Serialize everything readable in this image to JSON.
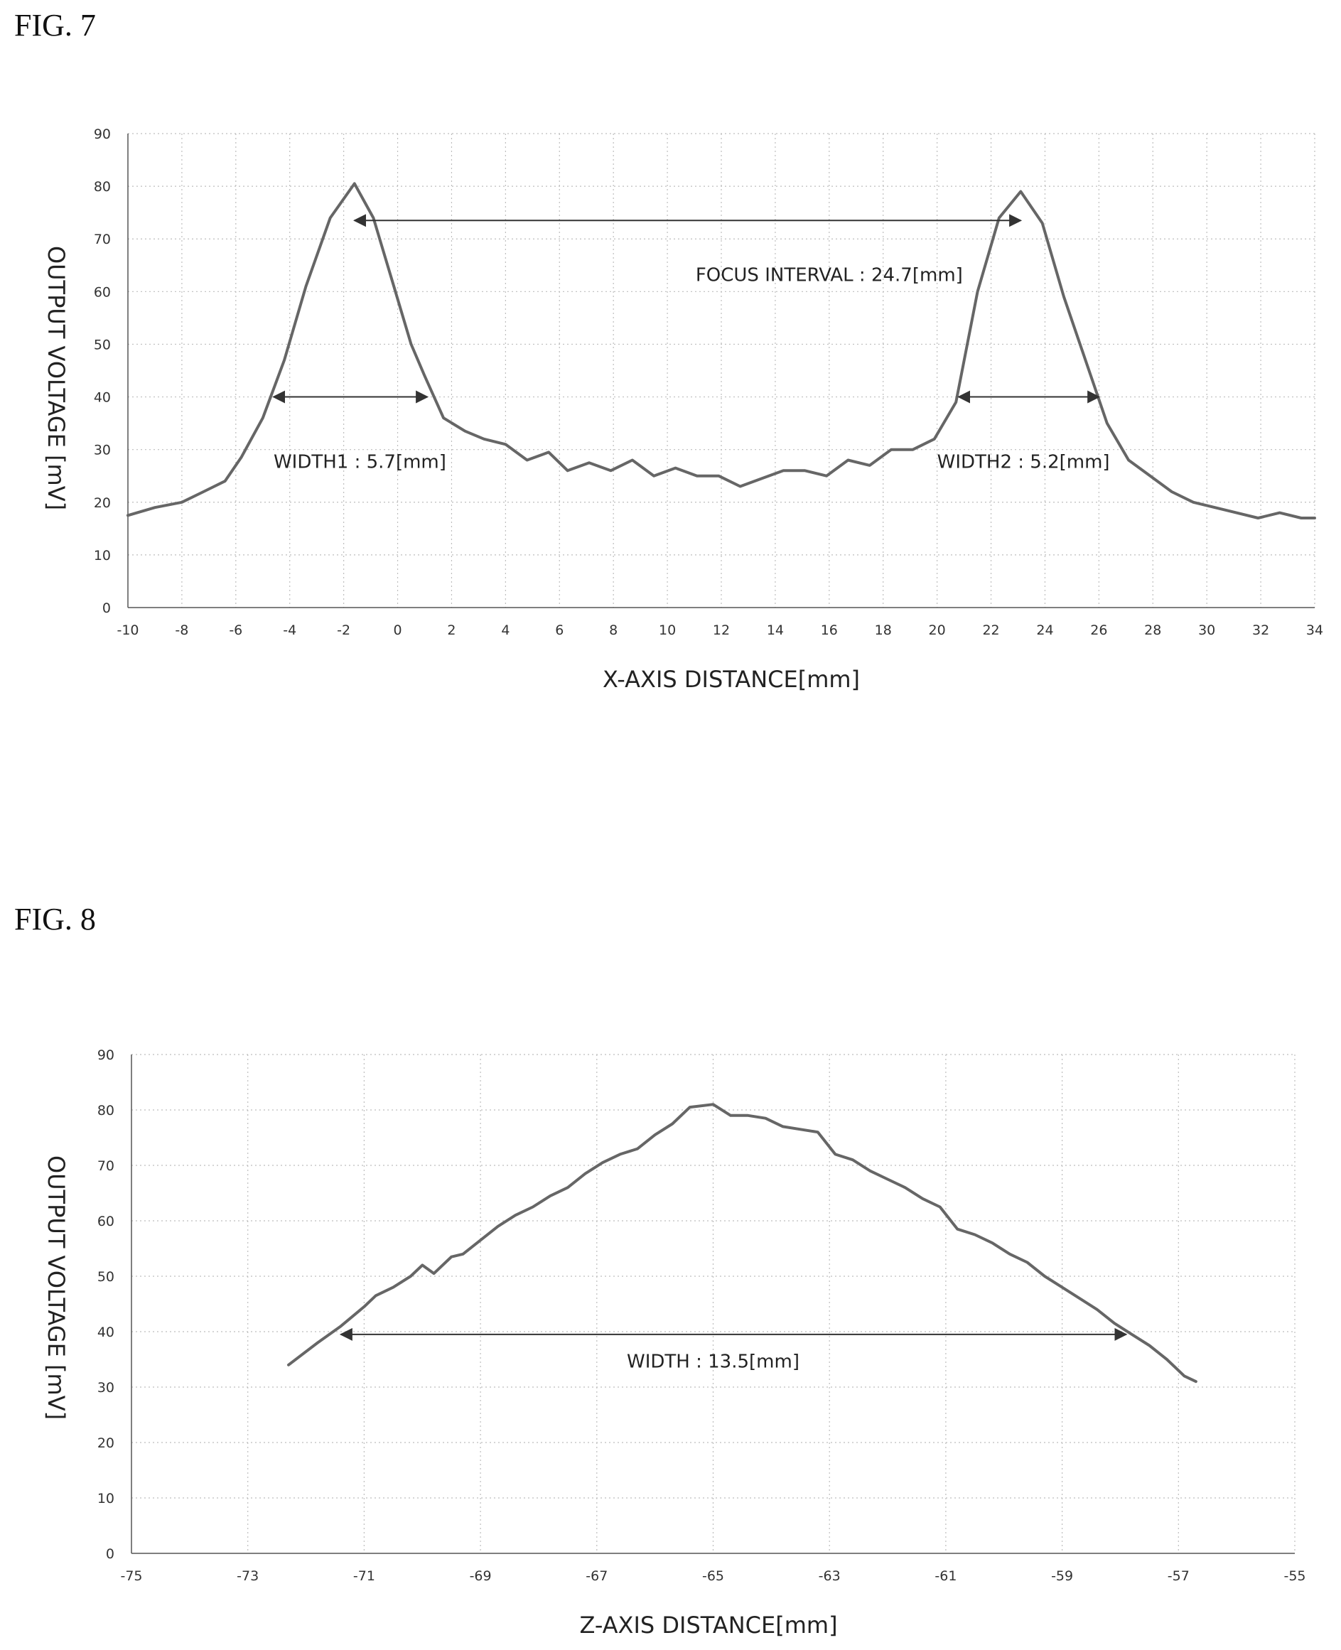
{
  "figures": [
    {
      "label": "FIG. 7"
    },
    {
      "label": "FIG. 8"
    }
  ],
  "chart_data": [
    {
      "type": "line",
      "xlabel": "X-AXIS DISTANCE[mm]",
      "ylabel": "OUTPUT VOLTAGE [mV]",
      "xlim": [
        -10,
        34
      ],
      "ylim": [
        0,
        90
      ],
      "x_ticks": [
        -10,
        -8,
        -6,
        -4,
        -2,
        0,
        2,
        4,
        6,
        8,
        10,
        12,
        14,
        16,
        18,
        20,
        22,
        24,
        26,
        28,
        30,
        32,
        34
      ],
      "y_ticks": [
        0,
        10,
        20,
        30,
        40,
        50,
        60,
        70,
        80,
        90
      ],
      "grid": true,
      "series": [
        {
          "x": [
            -10,
            -9,
            -8,
            -7.2,
            -6.4,
            -5.8,
            -5,
            -4.2,
            -3.4,
            -2.5,
            -1.6,
            -0.9,
            -0.2,
            0.5,
            1,
            1.7,
            2.5,
            3.2,
            4,
            4.8,
            5.6,
            6.3,
            7.1,
            7.9,
            8.7,
            9.5,
            10.3,
            11.1,
            11.9,
            12.7,
            13.5,
            14.3,
            15.1,
            15.9,
            16.7,
            17.5,
            18.3,
            19.1,
            19.9,
            20.7,
            21.5,
            22.3,
            23.1,
            23.9,
            24.7,
            25.5,
            26.3,
            27.1,
            27.9,
            28.7,
            29.5,
            30.3,
            31.1,
            31.9,
            32.7,
            33.5,
            34
          ],
          "y": [
            17.5,
            19,
            20,
            22,
            24,
            28.5,
            36,
            47,
            61,
            74,
            80.5,
            74,
            62,
            50,
            44,
            36,
            33.5,
            32,
            31,
            28,
            29.5,
            26,
            27.5,
            26,
            28,
            25,
            26.5,
            25,
            25,
            23,
            24.5,
            26,
            26,
            25,
            28,
            27,
            30,
            30,
            32,
            39,
            60,
            74,
            79,
            73,
            59,
            47,
            35,
            28,
            25,
            22,
            20,
            19,
            18,
            17,
            18,
            17,
            17
          ]
        }
      ],
      "annotations": [
        {
          "text": "FOCUS INTERVAL : 24.7[mm]",
          "from": [
            -1.6,
            73.5
          ],
          "to": [
            23.1,
            73.5
          ],
          "text_at": [
            16,
            62
          ]
        },
        {
          "text": "WIDTH1 : 5.7[mm]",
          "from": [
            -4.6,
            40
          ],
          "to": [
            1.1,
            40
          ],
          "text_at": [
            -4.6,
            26.5
          ]
        },
        {
          "text": "WIDTH2 : 5.2[mm]",
          "from": [
            20.8,
            40
          ],
          "to": [
            26,
            40
          ],
          "text_at": [
            20,
            26.5
          ]
        }
      ]
    },
    {
      "type": "line",
      "xlabel": "Z-AXIS DISTANCE[mm]",
      "ylabel": "OUTPUT VOLTAGE [mV]",
      "xlim": [
        -75,
        -55
      ],
      "ylim": [
        0,
        90
      ],
      "x_ticks": [
        -75,
        -73,
        -71,
        -69,
        -67,
        -65,
        -63,
        -61,
        -59,
        -57,
        -55
      ],
      "y_ticks": [
        0,
        10,
        20,
        30,
        40,
        50,
        60,
        70,
        80,
        90
      ],
      "grid": true,
      "series": [
        {
          "x": [
            -72.3,
            -71.8,
            -71.4,
            -71,
            -70.8,
            -70.5,
            -70.2,
            -70,
            -69.8,
            -69.5,
            -69.3,
            -69,
            -68.7,
            -68.4,
            -68.1,
            -67.8,
            -67.5,
            -67.2,
            -66.9,
            -66.6,
            -66.3,
            -66,
            -65.7,
            -65.4,
            -65,
            -64.7,
            -64.4,
            -64.1,
            -63.8,
            -63.5,
            -63.2,
            -62.9,
            -62.6,
            -62.3,
            -62,
            -61.7,
            -61.4,
            -61.1,
            -60.8,
            -60.5,
            -60.2,
            -59.9,
            -59.6,
            -59.3,
            -59,
            -58.7,
            -58.4,
            -58.1,
            -57.8,
            -57.5,
            -57.2,
            -56.9,
            -56.7
          ],
          "y": [
            34,
            38,
            41,
            44.5,
            46.5,
            48,
            50,
            52,
            50.5,
            53.5,
            54,
            56.5,
            59,
            61,
            62.5,
            64.5,
            66,
            68.5,
            70.5,
            72,
            73,
            75.5,
            77.5,
            80.5,
            81,
            79,
            79,
            78.5,
            77,
            76.5,
            76,
            72,
            71,
            69,
            67.5,
            66,
            64,
            62.5,
            58.5,
            57.5,
            56,
            54,
            52.5,
            50,
            48,
            46,
            44,
            41.5,
            39.5,
            37.5,
            35,
            32,
            31
          ]
        }
      ],
      "annotations": [
        {
          "text": "WIDTH : 13.5[mm]",
          "from": [
            -71.4,
            39.5
          ],
          "to": [
            -57.9,
            39.5
          ],
          "text_at": [
            -65,
            33.5
          ]
        }
      ]
    }
  ]
}
